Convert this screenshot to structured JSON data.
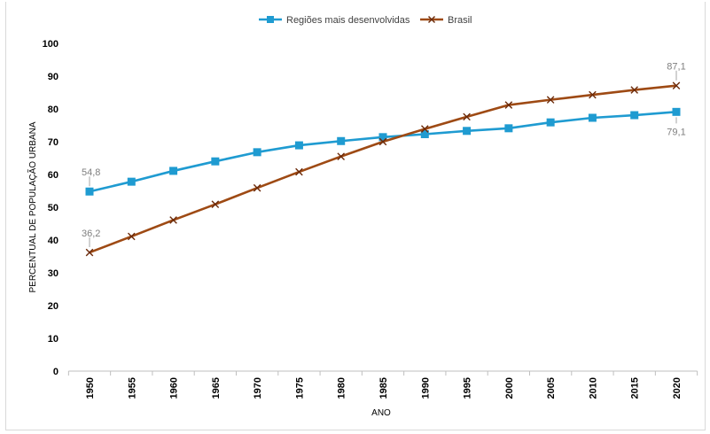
{
  "chart_data": {
    "type": "line",
    "title": "",
    "xlabel": "ANO",
    "ylabel": "PERCENTUAL DE POPULAÇÃO URBANA",
    "ylim": [
      0,
      100
    ],
    "yticks": [
      0,
      10,
      20,
      30,
      40,
      50,
      60,
      70,
      80,
      90,
      100
    ],
    "categories": [
      "1950",
      "1955",
      "1960",
      "1965",
      "1970",
      "1975",
      "1980",
      "1985",
      "1990",
      "1995",
      "2000",
      "2005",
      "2010",
      "2015",
      "2020"
    ],
    "series": [
      {
        "name": "Regiões mais desenvolvidas",
        "color": "#1f9bd1",
        "marker": "square",
        "values": [
          54.8,
          57.8,
          61.1,
          64.0,
          66.8,
          68.9,
          70.2,
          71.4,
          72.3,
          73.3,
          74.1,
          75.9,
          77.3,
          78.1,
          79.1
        ]
      },
      {
        "name": "Brasil",
        "color": "#9e4a14",
        "marker": "x",
        "values": [
          36.2,
          41.1,
          46.1,
          50.9,
          55.9,
          60.8,
          65.5,
          70.0,
          73.9,
          77.6,
          81.2,
          82.8,
          84.3,
          85.8,
          87.1
        ]
      }
    ],
    "annotations": [
      {
        "series": 0,
        "index": 0,
        "text": "54,8",
        "position": "above"
      },
      {
        "series": 1,
        "index": 0,
        "text": "36,2",
        "position": "above"
      },
      {
        "series": 1,
        "index": 14,
        "text": "87,1",
        "position": "above"
      },
      {
        "series": 0,
        "index": 14,
        "text": "79,1",
        "position": "below"
      }
    ],
    "legend": "top-center",
    "grid": false
  }
}
